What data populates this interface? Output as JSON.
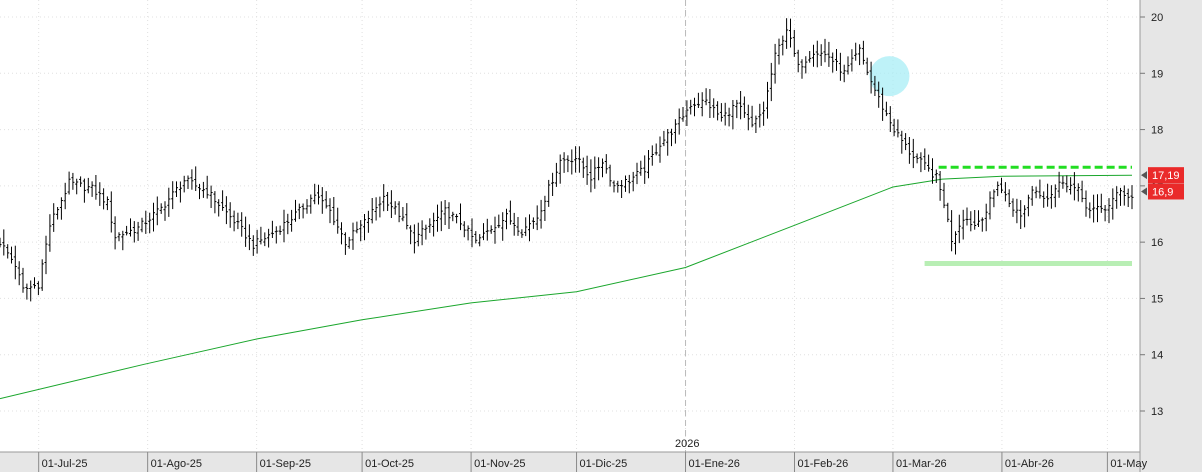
{
  "chart_data": {
    "type": "ohlc",
    "title": "",
    "xlabel": "",
    "ylabel": "",
    "ylim": [
      12.6,
      20.25
    ],
    "y_ticks": [
      "20",
      "19",
      "18",
      "17",
      "16",
      "15",
      "14",
      "13"
    ],
    "y_tick_values": [
      20,
      19,
      18,
      17,
      16,
      15,
      14,
      13
    ],
    "x_tick_labels": [
      "01-Jul-25",
      "01-Ago-25",
      "01-Sep-25",
      "01-Oct-25",
      "01-Nov-25",
      "01-Dic-25",
      "01-Ene-26",
      "01-Feb-26",
      "01-Mar-26",
      "01-Abr-26",
      "01-May"
    ],
    "year_marker": "2026",
    "grid": true,
    "series": [
      {
        "kind": "ohlc",
        "color": "#000000",
        "anchors": [
          [
            0,
            16.0
          ],
          [
            4,
            15.6
          ],
          [
            6,
            15.15
          ],
          [
            10,
            15.25
          ],
          [
            13,
            16.3
          ],
          [
            18,
            17.05
          ],
          [
            24,
            16.95
          ],
          [
            28,
            16.7
          ],
          [
            30,
            16.1
          ],
          [
            36,
            16.25
          ],
          [
            42,
            16.6
          ],
          [
            48,
            17.1
          ],
          [
            54,
            16.9
          ],
          [
            58,
            16.6
          ],
          [
            62,
            16.3
          ],
          [
            66,
            15.95
          ],
          [
            72,
            16.2
          ],
          [
            78,
            16.55
          ],
          [
            82,
            16.85
          ],
          [
            86,
            16.55
          ],
          [
            90,
            16.0
          ],
          [
            95,
            16.35
          ],
          [
            100,
            16.8
          ],
          [
            104,
            16.5
          ],
          [
            108,
            16.05
          ],
          [
            112,
            16.3
          ],
          [
            116,
            16.55
          ],
          [
            120,
            16.35
          ],
          [
            124,
            16.0
          ],
          [
            128,
            16.25
          ],
          [
            132,
            16.45
          ],
          [
            136,
            16.2
          ],
          [
            140,
            16.45
          ],
          [
            143,
            16.95
          ],
          [
            146,
            17.45
          ],
          [
            150,
            17.5
          ],
          [
            154,
            17.15
          ],
          [
            157,
            17.45
          ],
          [
            160,
            17.0
          ],
          [
            164,
            17.1
          ],
          [
            168,
            17.3
          ],
          [
            172,
            17.75
          ],
          [
            176,
            18.05
          ],
          [
            180,
            18.45
          ],
          [
            184,
            18.5
          ],
          [
            188,
            18.2
          ],
          [
            192,
            18.45
          ],
          [
            196,
            18.05
          ],
          [
            199,
            18.35
          ],
          [
            202,
            19.3
          ],
          [
            205,
            19.8
          ],
          [
            208,
            19.1
          ],
          [
            212,
            19.4
          ],
          [
            216,
            19.3
          ],
          [
            220,
            19.0
          ],
          [
            224,
            19.4
          ],
          [
            227,
            18.85
          ],
          [
            230,
            18.4
          ],
          [
            233,
            18.0
          ],
          [
            237,
            17.6
          ],
          [
            241,
            17.35
          ],
          [
            244,
            17.15
          ],
          [
            246,
            16.7
          ],
          [
            248,
            16.05
          ],
          [
            251,
            16.45
          ],
          [
            254,
            16.3
          ],
          [
            257,
            16.55
          ],
          [
            260,
            17.05
          ],
          [
            263,
            16.7
          ],
          [
            266,
            16.45
          ],
          [
            269,
            16.95
          ],
          [
            273,
            16.8
          ],
          [
            277,
            17.1
          ],
          [
            281,
            16.9
          ],
          [
            284,
            16.55
          ],
          [
            288,
            16.6
          ],
          [
            292,
            16.9
          ],
          [
            295,
            16.8
          ]
        ],
        "bars": 296,
        "x_start": "2025-06-20",
        "x_end": "2026-05-08"
      },
      {
        "kind": "line",
        "color": "#1aa62c",
        "points": [
          [
            "2025-06-20",
            13.22
          ],
          [
            "2025-07-31",
            13.83
          ],
          [
            "2025-09-01",
            14.28
          ],
          [
            "2025-10-01",
            14.62
          ],
          [
            "2025-11-01",
            14.92
          ],
          [
            "2025-12-01",
            15.12
          ],
          [
            "2026-01-01",
            15.55
          ],
          [
            "2026-02-01",
            16.3
          ],
          [
            "2026-03-01",
            16.98
          ],
          [
            "2026-03-15",
            17.12
          ],
          [
            "2026-04-01",
            17.17
          ],
          [
            "2026-05-08",
            17.19
          ]
        ]
      }
    ],
    "annotations": {
      "resistance_line": {
        "value": 17.33,
        "color": "#22dd22",
        "from": "2026-03-14",
        "to": "2026-05-08"
      },
      "support_band": {
        "value": 15.62,
        "color": "#b8eeb4",
        "from": "2026-03-10",
        "to": "2026-05-08"
      },
      "highlight_circle": {
        "date": "2026-02-28",
        "value": 18.95,
        "color": "#a8eef6"
      },
      "last_price_marks": [
        {
          "label": "17,19",
          "value": 17.19,
          "color": "#ea2a2a"
        },
        {
          "label": "16,9",
          "value": 16.9,
          "color": "#ea2a2a"
        }
      ]
    },
    "colors": {
      "axis_bg": "#e6e6e6",
      "grid": "#e0e0e0",
      "year_divider": "#bbbbbb"
    }
  }
}
